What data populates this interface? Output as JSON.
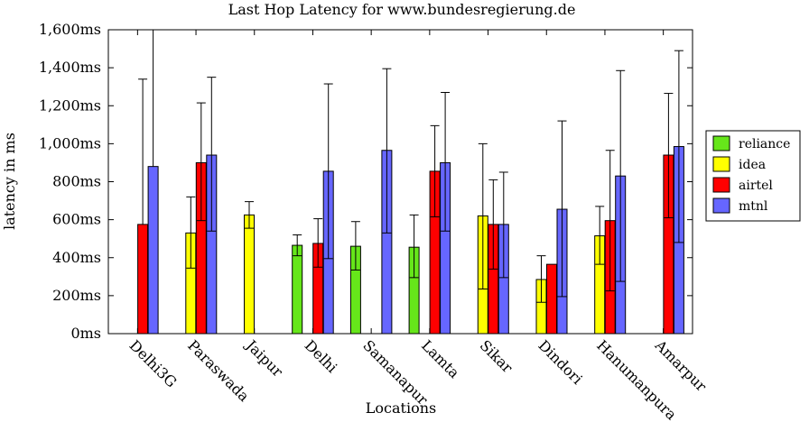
{
  "chart_data": {
    "type": "bar",
    "title": "Last Hop Latency for www.bundesregierung.de",
    "xlabel": "Locations",
    "ylabel": "latency in ms",
    "ylim": [
      0,
      1600
    ],
    "yticks": [
      0,
      200,
      400,
      600,
      800,
      1000,
      1200,
      1400,
      1600
    ],
    "ytick_labels": [
      "0ms",
      "200ms",
      "400ms",
      "600ms",
      "800ms",
      "1,000ms",
      "1,200ms",
      "1,400ms",
      "1,600ms"
    ],
    "grid": false,
    "legend_position": "right",
    "categories": [
      "Delhi3G",
      "Paraswada",
      "Jaipur",
      "Delhi",
      "Samanapur",
      "Lamta",
      "Sikar",
      "Dindori",
      "Hanumanpura",
      "Amarpur"
    ],
    "series": [
      {
        "name": "reliance",
        "color": "#66e61a",
        "values": [
          null,
          null,
          null,
          465,
          460,
          455,
          null,
          null,
          null,
          null
        ],
        "err_low": [
          null,
          null,
          null,
          410,
          335,
          295,
          null,
          null,
          null,
          null
        ],
        "err_high": [
          null,
          null,
          null,
          520,
          590,
          625,
          null,
          null,
          null,
          null
        ]
      },
      {
        "name": "idea",
        "color": "#ffff00",
        "values": [
          null,
          530,
          625,
          null,
          null,
          null,
          620,
          285,
          515,
          null
        ],
        "err_low": [
          null,
          345,
          555,
          null,
          null,
          null,
          235,
          165,
          365,
          null
        ],
        "err_high": [
          null,
          720,
          695,
          null,
          null,
          null,
          1000,
          410,
          670,
          null
        ]
      },
      {
        "name": "airtel",
        "color": "#ff0000",
        "values": [
          575,
          900,
          null,
          475,
          null,
          855,
          575,
          365,
          595,
          940
        ],
        "err_low": [
          null,
          595,
          null,
          350,
          null,
          615,
          340,
          null,
          225,
          610
        ],
        "err_high": [
          1340,
          1215,
          null,
          605,
          null,
          1095,
          810,
          null,
          965,
          1265
        ]
      },
      {
        "name": "mtnl",
        "color": "#6666ff",
        "values": [
          880,
          940,
          null,
          855,
          965,
          900,
          575,
          655,
          830,
          985
        ],
        "err_low": [
          null,
          540,
          null,
          395,
          530,
          540,
          295,
          195,
          275,
          480
        ],
        "err_high": [
          1600,
          1350,
          null,
          1315,
          1395,
          1270,
          850,
          1120,
          1385,
          1490
        ]
      }
    ]
  }
}
